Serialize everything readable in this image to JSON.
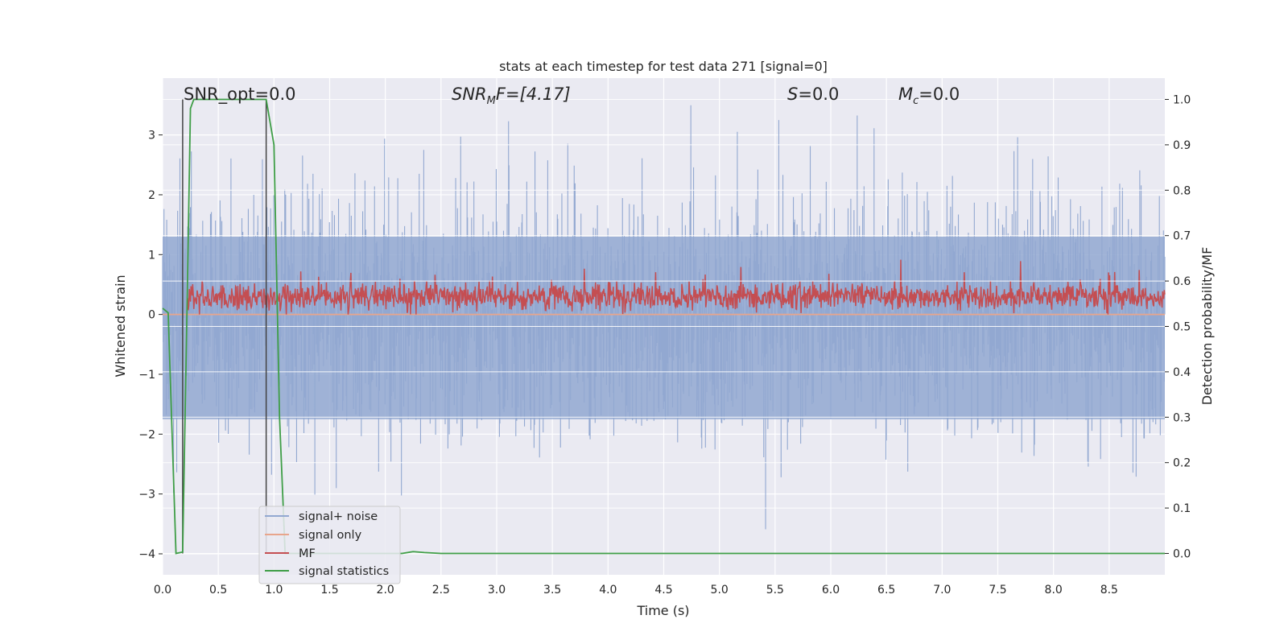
{
  "chart_data": {
    "type": "line",
    "title": "stats at each timestep for test data 271 [signal=0]",
    "xlabel": "Time (s)",
    "ylabel": "Whitened strain",
    "y2label": "Detection probability/MF",
    "xlim": [
      0,
      9.0
    ],
    "ylim": [
      -4.35,
      3.95
    ],
    "y2lim": [
      -0.047,
      1.047
    ],
    "grid": true,
    "xticks": [
      "0.0",
      "0.5",
      "1.0",
      "1.5",
      "2.0",
      "2.5",
      "3.0",
      "3.5",
      "4.0",
      "4.5",
      "5.0",
      "5.5",
      "6.0",
      "6.5",
      "7.0",
      "7.5",
      "8.0",
      "8.5"
    ],
    "yticks": [
      "3",
      "2",
      "1",
      "0",
      "−1",
      "−2",
      "−3",
      "−4"
    ],
    "y2ticks": [
      "1.0",
      "0.9",
      "0.8",
      "0.7",
      "0.6",
      "0.5",
      "0.4",
      "0.3",
      "0.2",
      "0.1",
      "0.0"
    ],
    "annotations": {
      "snr_opt": "SNR_opt=0.0",
      "snr_mf_main": "SNR",
      "snr_mf_sub": "M",
      "snr_mf_rest": "F=[4.17]",
      "s_main": "S",
      "s_rest": "=0.0",
      "mc_main": "M",
      "mc_sub": "c",
      "mc_rest": "=0.0"
    },
    "series": [
      {
        "name": "signal+ noise",
        "color": "#92a8d1",
        "axis": "left",
        "description_values": "gaussian noise, std ~1.0, range about -4 to 3.6"
      },
      {
        "name": "signal only",
        "color": "#e8a58c",
        "axis": "left",
        "constant": 0.0
      },
      {
        "name": "MF",
        "color": "#c44e52",
        "axis": "left",
        "mean": 0.3,
        "range": [
          0.0,
          1.0
        ]
      },
      {
        "name": "signal statistics",
        "color": "#3f9e47",
        "axis": "right",
        "x": [
          0.0,
          0.05,
          0.12,
          0.18,
          0.22,
          0.25,
          0.28,
          0.5,
          0.75,
          0.93,
          1.0,
          1.05,
          1.1,
          1.15,
          1.5,
          2.0,
          2.15,
          2.25,
          2.35,
          2.5,
          3.0,
          4.0,
          5.0,
          6.0,
          7.0,
          8.0,
          9.0
        ],
        "y": [
          0.54,
          0.53,
          0.0,
          0.003,
          0.55,
          0.98,
          1.0,
          1.0,
          1.0,
          1.0,
          0.9,
          0.3,
          0.0,
          0.0,
          0.0,
          0.0,
          0.0,
          0.004,
          0.002,
          0.0,
          0.0,
          0.0,
          0.0,
          0.0,
          0.0,
          0.0,
          0.0
        ]
      }
    ],
    "vlines": [
      0.18,
      0.93
    ],
    "legend": {
      "position": "lower-left",
      "entries": [
        "signal+ noise",
        "signal only",
        "MF",
        "signal statistics"
      ]
    }
  }
}
